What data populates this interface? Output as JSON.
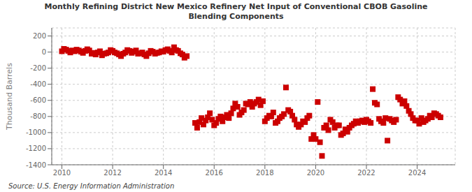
{
  "chart_data": {
    "type": "scatter",
    "title": "Monthly Refining District New Mexico Refinery Net Input of Conventional CBOB Gasoline\nBlending Components",
    "ylabel": "Thousand Barrels",
    "source": "Source: U.S. Energy Information Administration",
    "color": "#cc0000",
    "marker": "square",
    "grid": true,
    "xlim": [
      2009.6,
      2025.5
    ],
    "xticks": [
      2010,
      2012,
      2014,
      2016,
      2018,
      2020,
      2022,
      2024
    ],
    "ylim": [
      -1400,
      300
    ],
    "yticks": [
      200,
      0,
      -200,
      -400,
      -600,
      -800,
      -1000,
      -1200,
      -1400
    ],
    "x": [
      2010.0,
      2010.08,
      2010.17,
      2010.25,
      2010.33,
      2010.42,
      2010.5,
      2010.58,
      2010.67,
      2010.75,
      2010.83,
      2010.92,
      2011.0,
      2011.08,
      2011.17,
      2011.25,
      2011.33,
      2011.42,
      2011.5,
      2011.58,
      2011.67,
      2011.75,
      2011.83,
      2011.92,
      2012.0,
      2012.08,
      2012.17,
      2012.25,
      2012.33,
      2012.42,
      2012.5,
      2012.58,
      2012.67,
      2012.75,
      2012.83,
      2012.92,
      2013.0,
      2013.08,
      2013.17,
      2013.25,
      2013.33,
      2013.42,
      2013.5,
      2013.58,
      2013.67,
      2013.75,
      2013.83,
      2013.92,
      2014.0,
      2014.08,
      2014.17,
      2014.25,
      2014.33,
      2014.42,
      2014.5,
      2014.58,
      2014.67,
      2014.75,
      2014.83,
      2014.92,
      2015.25,
      2015.33,
      2015.42,
      2015.5,
      2015.58,
      2015.67,
      2015.75,
      2015.83,
      2015.92,
      2016.0,
      2016.08,
      2016.17,
      2016.25,
      2016.33,
      2016.42,
      2016.5,
      2016.58,
      2016.67,
      2016.75,
      2016.83,
      2016.92,
      2017.0,
      2017.08,
      2017.17,
      2017.25,
      2017.33,
      2017.42,
      2017.5,
      2017.58,
      2017.67,
      2017.75,
      2017.83,
      2017.92,
      2018.0,
      2018.08,
      2018.17,
      2018.25,
      2018.33,
      2018.42,
      2018.5,
      2018.58,
      2018.67,
      2018.75,
      2018.83,
      2018.92,
      2019.0,
      2019.08,
      2019.17,
      2019.25,
      2019.33,
      2019.42,
      2019.5,
      2019.58,
      2019.67,
      2019.75,
      2019.83,
      2019.92,
      2020.0,
      2020.08,
      2020.17,
      2020.25,
      2020.33,
      2020.42,
      2020.5,
      2020.58,
      2020.67,
      2020.75,
      2020.83,
      2020.92,
      2021.0,
      2021.08,
      2021.17,
      2021.25,
      2021.33,
      2021.42,
      2021.5,
      2021.58,
      2021.67,
      2021.75,
      2021.83,
      2021.92,
      2022.0,
      2022.08,
      2022.17,
      2022.25,
      2022.33,
      2022.42,
      2022.5,
      2022.58,
      2022.67,
      2022.75,
      2022.83,
      2022.92,
      2023.0,
      2023.08,
      2023.17,
      2023.25,
      2023.33,
      2023.42,
      2023.5,
      2023.58,
      2023.67,
      2023.75,
      2023.83,
      2023.92,
      2024.0,
      2024.08,
      2024.17,
      2024.25,
      2024.33,
      2024.42,
      2024.5,
      2024.58,
      2024.67,
      2024.75,
      2024.83,
      2024.92
    ],
    "values": [
      10,
      40,
      30,
      15,
      -5,
      20,
      10,
      30,
      20,
      5,
      -10,
      15,
      35,
      20,
      -20,
      -10,
      -30,
      -5,
      10,
      -40,
      -20,
      -15,
      -5,
      25,
      15,
      -5,
      -15,
      -30,
      -50,
      -20,
      -5,
      25,
      15,
      -10,
      5,
      20,
      -20,
      -15,
      -5,
      -30,
      -50,
      -15,
      15,
      5,
      -20,
      -10,
      -5,
      10,
      5,
      25,
      35,
      15,
      -5,
      60,
      25,
      15,
      -15,
      -30,
      -70,
      -50,
      -880,
      -940,
      -870,
      -820,
      -900,
      -850,
      -810,
      -760,
      -840,
      -910,
      -880,
      -830,
      -800,
      -860,
      -810,
      -780,
      -820,
      -760,
      -700,
      -640,
      -680,
      -780,
      -750,
      -720,
      -640,
      -650,
      -620,
      -680,
      -640,
      -620,
      -590,
      -660,
      -610,
      -860,
      -820,
      -790,
      -800,
      -750,
      -880,
      -860,
      -820,
      -800,
      -770,
      -440,
      -720,
      -740,
      -790,
      -840,
      -900,
      -930,
      -900,
      -860,
      -870,
      -820,
      -790,
      -1080,
      -1030,
      -1080,
      -620,
      -1120,
      -1290,
      -940,
      -910,
      -970,
      -840,
      -870,
      -940,
      -910,
      -910,
      -1030,
      -1010,
      -960,
      -990,
      -940,
      -910,
      -890,
      -860,
      -880,
      -860,
      -850,
      -870,
      -840,
      -860,
      -880,
      -460,
      -630,
      -650,
      -830,
      -860,
      -880,
      -820,
      -1100,
      -830,
      -850,
      -870,
      -840,
      -560,
      -590,
      -640,
      -610,
      -670,
      -730,
      -770,
      -820,
      -850,
      -850,
      -890,
      -820,
      -870,
      -850,
      -830,
      -790,
      -810,
      -760,
      -770,
      -790,
      -810
    ]
  }
}
